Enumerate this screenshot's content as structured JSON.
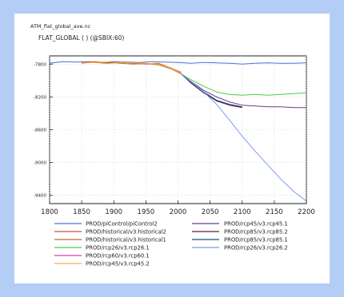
{
  "chart_data": {
    "type": "line",
    "file_label": "ATM_flat_global_ave.nc",
    "title": "FLAT_GLOBAL ( ) (@SBIX:60)",
    "xlim": [
      1800,
      2200
    ],
    "ylim": [
      -9500,
      -7700
    ],
    "x_ticks": [
      1800,
      1850,
      1900,
      1950,
      2000,
      2050,
      2100,
      2150,
      2200
    ],
    "y_ticks": [
      -7800,
      -8200,
      -8600,
      -9000,
      -9400
    ],
    "grid": true,
    "legend_position": "bottom",
    "series": [
      {
        "name": "PROD/piControl/piControl2",
        "color": "#4f6fd8",
        "x": [
          1800,
          1820,
          1840,
          1860,
          1880,
          1900,
          1920,
          1940,
          1960,
          1980,
          2000,
          2020,
          2040,
          2060,
          2080,
          2100,
          2120,
          2140,
          2160,
          2180,
          2200
        ],
        "y": [
          -7790,
          -7770,
          -7775,
          -7770,
          -7785,
          -7770,
          -7775,
          -7780,
          -7770,
          -7775,
          -7780,
          -7790,
          -7780,
          -7785,
          -7790,
          -7800,
          -7790,
          -7785,
          -7790,
          -7790,
          -7785
        ]
      },
      {
        "name": "PROD/historical/v3.historical2",
        "color": "#d04848",
        "x": [
          1850,
          1870,
          1890,
          1910,
          1930,
          1950,
          1970,
          1990,
          2005
        ],
        "y": [
          -7780,
          -7770,
          -7790,
          -7775,
          -7790,
          -7800,
          -7790,
          -7850,
          -7900
        ]
      },
      {
        "name": "PROD/historical/v3.historical1",
        "color": "#b86a2a",
        "x": [
          1850,
          1870,
          1890,
          1910,
          1930,
          1950,
          1970,
          1990,
          2005
        ],
        "y": [
          -7790,
          -7775,
          -7780,
          -7790,
          -7800,
          -7795,
          -7810,
          -7860,
          -7920
        ]
      },
      {
        "name": "PROD/rcp26/v3.rcp26.1",
        "color": "#4ecb4e",
        "x": [
          2005,
          2020,
          2040,
          2060,
          2080,
          2100,
          2120,
          2140,
          2160,
          2180,
          2200
        ],
        "y": [
          -7920,
          -7990,
          -8070,
          -8140,
          -8170,
          -8180,
          -8170,
          -8180,
          -8170,
          -8160,
          -8150
        ]
      },
      {
        "name": "PROD/rcp60/v3.rcp60.1",
        "color": "#e040a0",
        "x": [
          2005,
          2020,
          2040,
          2060,
          2080,
          2100
        ],
        "y": [
          -7920,
          -8010,
          -8140,
          -8240,
          -8300,
          -8320
        ]
      },
      {
        "name": "PROD/rcp45/v3.rcp45.2",
        "color": "#f0b040",
        "x": [
          1850,
          1870,
          1890,
          1910,
          1930,
          1950,
          1970,
          1990,
          2005
        ],
        "y": [
          -7785,
          -7780,
          -7795,
          -7780,
          -7785,
          -7790,
          -7800,
          -7850,
          -7910
        ]
      },
      {
        "name": "PROD/rcp45/v3.rcp45.1",
        "color": "#6a3a8a",
        "x": [
          2005,
          2020,
          2040,
          2060,
          2080,
          2100,
          2120,
          2140,
          2160,
          2180,
          2200
        ],
        "y": [
          -7920,
          -8010,
          -8120,
          -8200,
          -8260,
          -8300,
          -8310,
          -8320,
          -8320,
          -8330,
          -8330
        ]
      },
      {
        "name": "PROD/rcp85/v3.rcp85.2",
        "color": "#5a2040",
        "x": [
          2005,
          2020,
          2040,
          2060,
          2080,
          2100
        ],
        "y": [
          -7920,
          -8030,
          -8150,
          -8250,
          -8300,
          -8330
        ]
      },
      {
        "name": "PROD/rcp85/v3.rcp85.1",
        "color": "#1a4a8a",
        "x": [
          2005,
          2020,
          2040,
          2060,
          2080,
          2100
        ],
        "y": [
          -7920,
          -8020,
          -8140,
          -8240,
          -8290,
          -8320
        ]
      },
      {
        "name": "PROD/rcp26/v3.rcp26.2",
        "color": "#7a9cec",
        "x": [
          2005,
          2020,
          2040,
          2060,
          2080,
          2100,
          2120,
          2140,
          2160,
          2180,
          2200
        ],
        "y": [
          -7920,
          -8010,
          -8140,
          -8290,
          -8480,
          -8680,
          -8860,
          -9030,
          -9200,
          -9350,
          -9470
        ]
      }
    ]
  }
}
